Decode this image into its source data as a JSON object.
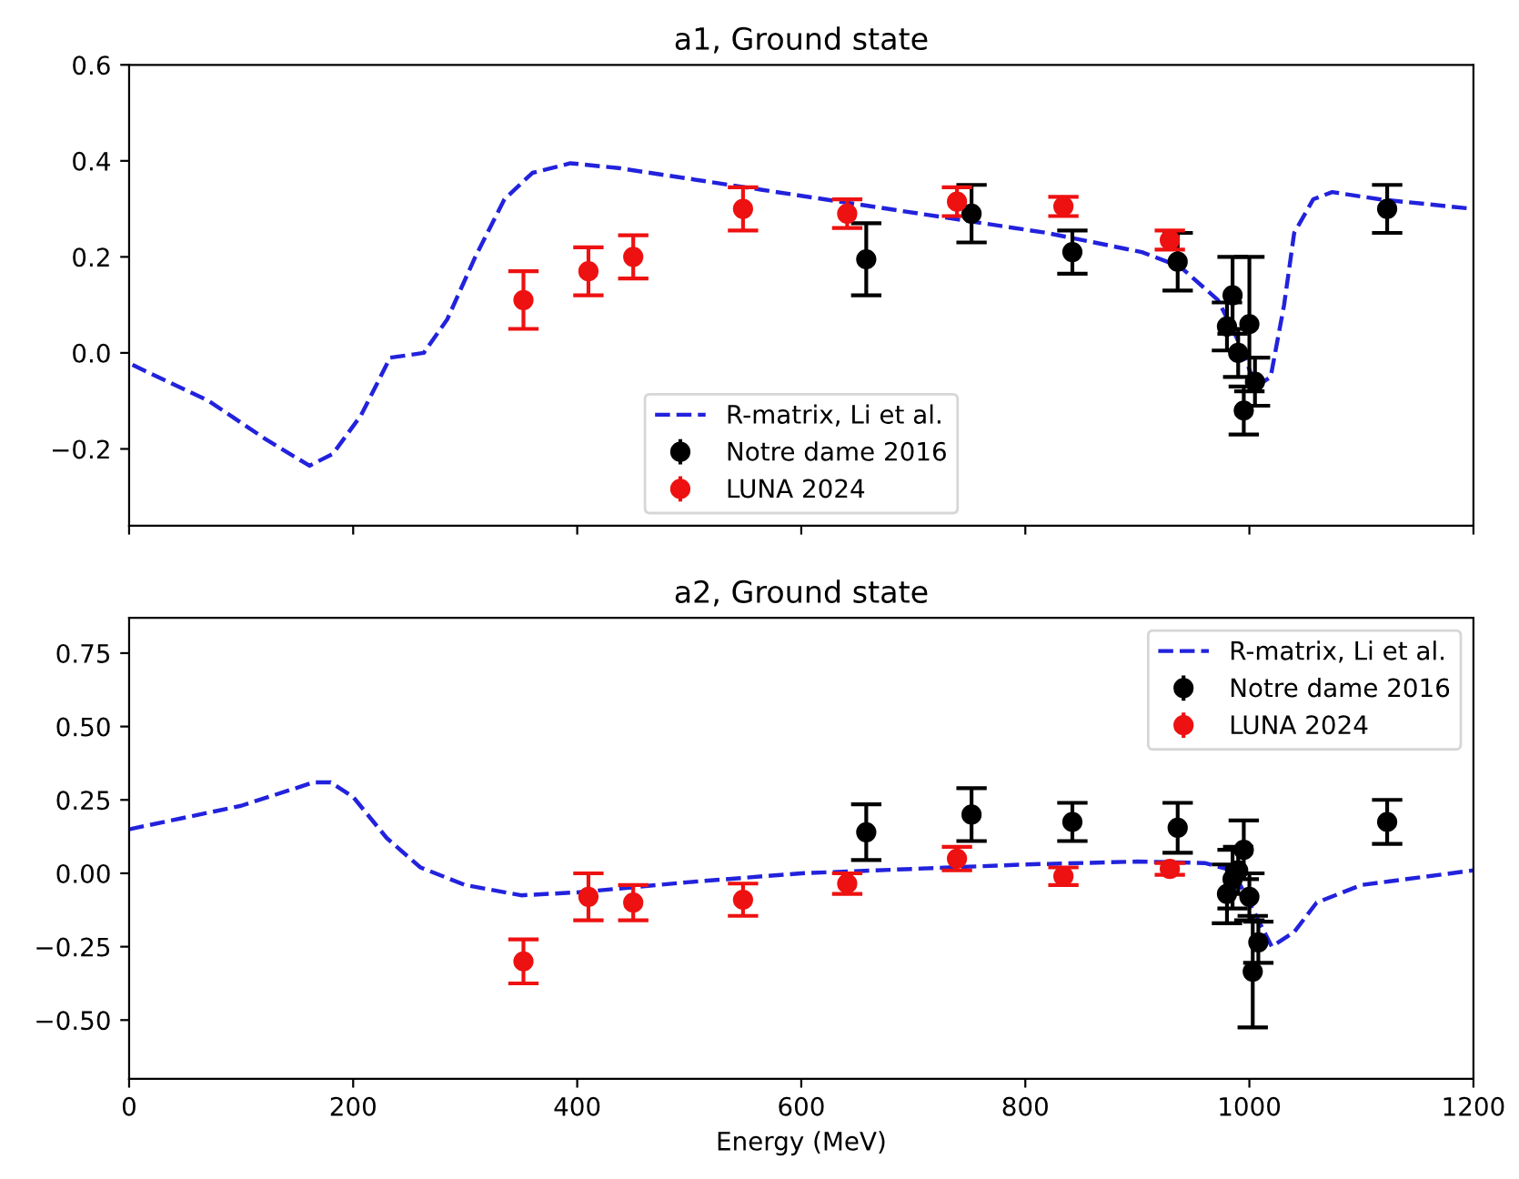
{
  "chart_data": [
    {
      "type": "line",
      "title": "a1, Ground state",
      "xlim": [
        0,
        1200
      ],
      "xticks": [
        0,
        200,
        400,
        600,
        800,
        1000,
        1200
      ],
      "ylim": [
        -0.36,
        0.6
      ],
      "yticks": [
        {
          "value": -0.2,
          "label": "−0.2"
        },
        {
          "value": 0,
          "label": "0.0"
        },
        0.2,
        0.4,
        0.6
      ],
      "tick_labels": "y",
      "legend": "bottom",
      "grid": false,
      "series": [
        {
          "name": "R-matrix, Li et al.",
          "line_style": "dashed",
          "marker": "none",
          "color": "#2222dd",
          "x": [
            3,
            71,
            122,
            161,
            182,
            207,
            233,
            263,
            284,
            309,
            335,
            360,
            394,
            437,
            564,
            734,
            819,
            904,
            938,
            972,
            989,
            1006,
            1019,
            1031,
            1040,
            1057,
            1074,
            1116,
            1200
          ],
          "values": [
            -0.025,
            -0.1,
            -0.18,
            -0.235,
            -0.21,
            -0.13,
            -0.01,
            0.0,
            0.07,
            0.2,
            0.32,
            0.375,
            0.395,
            0.385,
            0.34,
            0.28,
            0.25,
            0.21,
            0.18,
            0.11,
            0.03,
            -0.07,
            -0.05,
            0.1,
            0.25,
            0.32,
            0.335,
            0.32,
            0.3
          ]
        },
        {
          "name": "Notre dame 2016",
          "type": "scatter",
          "marker": "circle",
          "color": "#000000",
          "x": [
            658,
            752,
            842,
            936,
            980,
            985,
            990,
            995,
            1000,
            1005,
            1123
          ],
          "values": [
            0.195,
            0.29,
            0.21,
            0.19,
            0.055,
            0.12,
            0.0,
            -0.12,
            0.06,
            -0.06,
            0.3
          ],
          "errors": [
            0.075,
            0.06,
            0.045,
            0.06,
            0.05,
            0.08,
            0.05,
            0.05,
            0.14,
            0.05,
            0.05
          ]
        },
        {
          "name": "LUNA 2024",
          "type": "scatter",
          "marker": "circle",
          "color": "#ee1111",
          "x": [
            352,
            410,
            450,
            548,
            641,
            739,
            834,
            929
          ],
          "values": [
            0.11,
            0.17,
            0.2,
            0.3,
            0.29,
            0.315,
            0.305,
            0.235
          ],
          "errors": [
            0.06,
            0.05,
            0.045,
            0.045,
            0.03,
            0.03,
            0.02,
            0.02
          ]
        }
      ]
    },
    {
      "type": "line",
      "title": "a2, Ground state",
      "xlabel": "Energy (MeV)",
      "xlim": [
        0,
        1200
      ],
      "xticks": [
        0,
        200,
        400,
        600,
        800,
        1000,
        1200
      ],
      "ylim": [
        -0.7,
        0.87
      ],
      "yticks": [
        {
          "value": -0.5,
          "label": "−0.50"
        },
        {
          "value": -0.25,
          "label": "−0.25"
        },
        {
          "value": 0,
          "label": "0.00"
        },
        {
          "value": 0.25,
          "label": "0.25"
        },
        {
          "value": 0.5,
          "label": "0.50"
        },
        {
          "value": 0.75,
          "label": "0.75"
        }
      ],
      "legend": "top right",
      "grid": false,
      "series": [
        {
          "name": "R-matrix, Li et al.",
          "line_style": "dashed",
          "marker": "none",
          "color": "#2222dd",
          "x": [
            0,
            100,
            165,
            180,
            200,
            230,
            260,
            300,
            350,
            400,
            500,
            600,
            700,
            800,
            900,
            960,
            985,
            1000,
            1020,
            1040,
            1060,
            1100,
            1200
          ],
          "values": [
            0.15,
            0.23,
            0.31,
            0.31,
            0.26,
            0.12,
            0.02,
            -0.04,
            -0.075,
            -0.065,
            -0.03,
            0.0,
            0.015,
            0.03,
            0.04,
            0.035,
            0.01,
            -0.1,
            -0.25,
            -0.2,
            -0.1,
            -0.04,
            0.01
          ]
        },
        {
          "name": "Notre dame 2016",
          "type": "scatter",
          "marker": "circle",
          "color": "#000000",
          "x": [
            658,
            752,
            842,
            936,
            980,
            985,
            990,
            995,
            1000,
            1003,
            1008,
            1123
          ],
          "values": [
            0.14,
            0.2,
            0.175,
            0.155,
            -0.07,
            -0.02,
            0.01,
            0.08,
            -0.08,
            -0.335,
            -0.235,
            0.175
          ],
          "errors": [
            0.095,
            0.09,
            0.065,
            0.085,
            0.1,
            0.1,
            0.08,
            0.1,
            0.08,
            0.19,
            0.07,
            0.075
          ]
        },
        {
          "name": "LUNA 2024",
          "type": "scatter",
          "marker": "circle",
          "color": "#ee1111",
          "x": [
            352,
            410,
            450,
            548,
            641,
            739,
            834,
            929
          ],
          "values": [
            -0.3,
            -0.08,
            -0.1,
            -0.09,
            -0.035,
            0.05,
            -0.01,
            0.015
          ],
          "errors": [
            0.075,
            0.08,
            0.06,
            0.055,
            0.035,
            0.04,
            0.03,
            0.02
          ]
        }
      ]
    }
  ]
}
